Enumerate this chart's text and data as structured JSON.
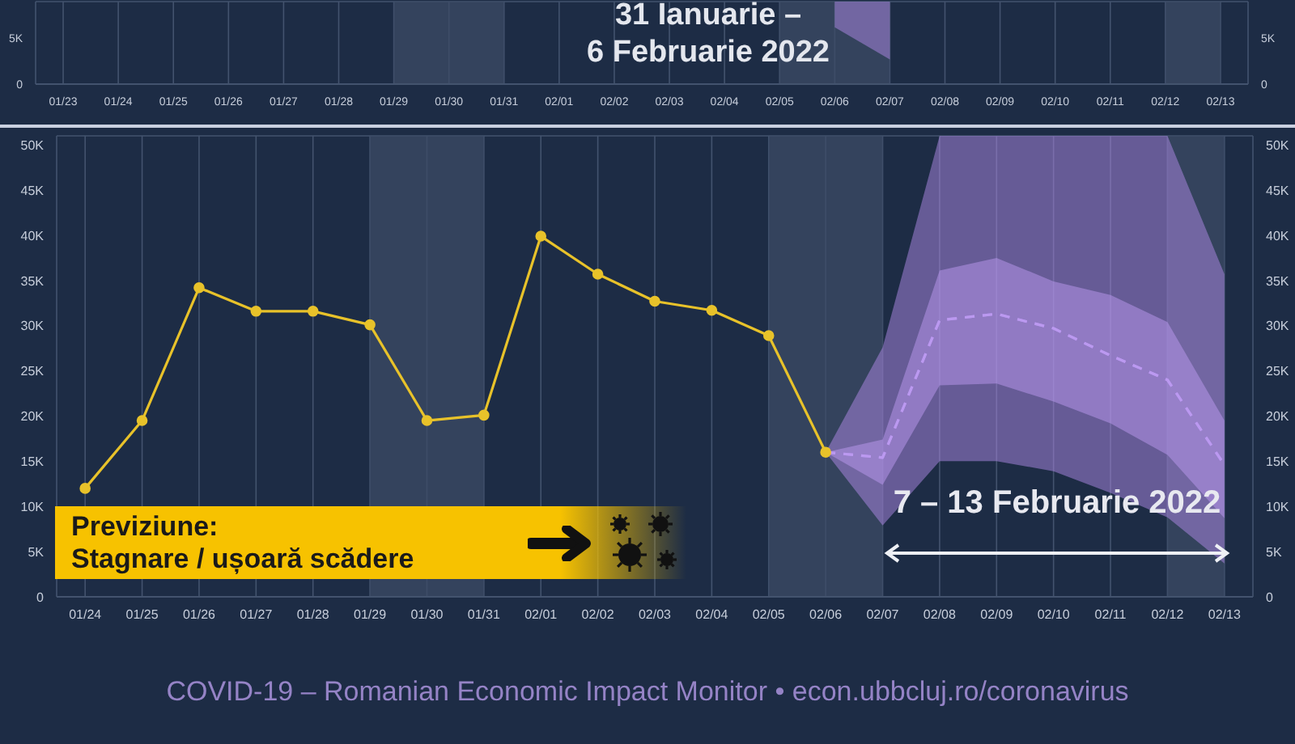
{
  "chart_data": [
    {
      "type": "line",
      "title": "31 Ianuarie –\n6 Februarie 2022",
      "categories": [
        "01/23",
        "01/24",
        "01/25",
        "01/26",
        "01/27",
        "01/28",
        "01/29",
        "01/30",
        "01/31",
        "02/01",
        "02/02",
        "02/03",
        "02/04",
        "02/05",
        "02/06",
        "02/07",
        "02/08",
        "02/09",
        "02/10",
        "02/11",
        "02/12",
        "02/13"
      ],
      "series": [
        {
          "color": "#b08ae8",
          "values": [
            null,
            null,
            null,
            null,
            null,
            null,
            null,
            null,
            null,
            null,
            null,
            null,
            null,
            null,
            null,
            null,
            null,
            null,
            null,
            null,
            null,
            null
          ],
          "lower": [
            null,
            null,
            null,
            null,
            null,
            null,
            null,
            null,
            null,
            null,
            null,
            null,
            null,
            null,
            6200,
            2700,
            null,
            null,
            null,
            null,
            null,
            null
          ],
          "upper": [
            null,
            null,
            null,
            null,
            null,
            null,
            null,
            null,
            null,
            null,
            null,
            null,
            null,
            null,
            9000,
            9000,
            null,
            null,
            null,
            null,
            null,
            null
          ]
        }
      ],
      "ylim": [
        0,
        9000
      ],
      "yticks": [
        0,
        {
          "value": 5000,
          "label": "5K"
        }
      ],
      "y2lim": [
        0,
        9000
      ],
      "y2ticks": [
        0,
        {
          "value": 5000,
          "label": "5K"
        }
      ],
      "grid": true,
      "bands": [
        {
          "axis": "x",
          "from": "01/29",
          "to": "01/31",
          "color": "#3c4b66"
        },
        {
          "axis": "x",
          "from": "02/05",
          "to": "02/07",
          "color": "#3c4b66"
        },
        {
          "axis": "x",
          "from": "02/12",
          "to": "02/13",
          "color": "#3c4b66"
        }
      ]
    },
    {
      "type": "line",
      "categories": [
        "01/24",
        "01/25",
        "01/26",
        "01/27",
        "01/28",
        "01/29",
        "01/30",
        "01/31",
        "02/01",
        "02/02",
        "02/03",
        "02/04",
        "02/05",
        "02/06",
        "02/07",
        "02/08",
        "02/09",
        "02/10",
        "02/11",
        "02/12",
        "02/13"
      ],
      "series": [
        {
          "color": "#b08ae8",
          "line_style": "dashed",
          "marker": "none",
          "values": [
            null,
            null,
            null,
            null,
            null,
            null,
            null,
            null,
            null,
            null,
            null,
            null,
            null,
            16000,
            15400,
            30600,
            31300,
            29700,
            26700,
            24000,
            14600
          ],
          "lower": [
            null,
            null,
            null,
            null,
            null,
            null,
            null,
            null,
            null,
            null,
            null,
            null,
            null,
            16000,
            7900,
            15000,
            15000,
            13900,
            11500,
            8800,
            3700
          ],
          "upper": [
            null,
            null,
            null,
            null,
            null,
            null,
            null,
            null,
            null,
            null,
            null,
            null,
            null,
            16000,
            27600,
            51000,
            51000,
            51000,
            51000,
            51000,
            35700
          ]
        },
        {
          "color": "#bb99f0",
          "line_style": "dashed",
          "marker": "none",
          "values": [
            null,
            null,
            null,
            null,
            null,
            null,
            null,
            null,
            null,
            null,
            null,
            null,
            null,
            16000,
            15400,
            30600,
            31300,
            29700,
            26700,
            24000,
            14600
          ],
          "lower": [
            null,
            null,
            null,
            null,
            null,
            null,
            null,
            null,
            null,
            null,
            null,
            null,
            null,
            16000,
            12400,
            23400,
            23600,
            21600,
            19200,
            15700,
            8700
          ],
          "upper": [
            null,
            null,
            null,
            null,
            null,
            null,
            null,
            null,
            null,
            null,
            null,
            null,
            null,
            16000,
            17400,
            36100,
            37500,
            34900,
            33400,
            30400,
            19500
          ]
        },
        {
          "color": "#e8c22a",
          "values": [
            12000,
            19500,
            34200,
            31600,
            31600,
            30100,
            19500,
            20100,
            39900,
            35700,
            32700,
            31700,
            28900,
            16000,
            null,
            null,
            null,
            null,
            null,
            null,
            null
          ]
        }
      ],
      "ylim": [
        0,
        51000
      ],
      "yticks": [
        0,
        {
          "value": 5000,
          "label": "5K"
        },
        {
          "value": 10000,
          "label": "10K"
        },
        {
          "value": 15000,
          "label": "15K"
        },
        {
          "value": 20000,
          "label": "20K"
        },
        {
          "value": 25000,
          "label": "25K"
        },
        {
          "value": 30000,
          "label": "30K"
        },
        {
          "value": 35000,
          "label": "35K"
        },
        {
          "value": 40000,
          "label": "40K"
        },
        {
          "value": 45000,
          "label": "45K"
        },
        {
          "value": 50000,
          "label": "50K"
        }
      ],
      "y2lim": [
        0,
        51000
      ],
      "y2ticks": [
        0,
        {
          "value": 5000,
          "label": "5K"
        },
        {
          "value": 10000,
          "label": "10K"
        },
        {
          "value": 15000,
          "label": "15K"
        },
        {
          "value": 20000,
          "label": "20K"
        },
        {
          "value": 25000,
          "label": "25K"
        },
        {
          "value": 30000,
          "label": "30K"
        },
        {
          "value": 35000,
          "label": "35K"
        },
        {
          "value": 40000,
          "label": "40K"
        },
        {
          "value": 45000,
          "label": "45K"
        },
        {
          "value": 50000,
          "label": "50K"
        }
      ],
      "grid": true,
      "marker": "circle",
      "line_style": "solid",
      "bands": [
        {
          "axis": "x",
          "from": "01/29",
          "to": "01/31",
          "color": "#3c4b66"
        },
        {
          "axis": "x",
          "from": "02/05",
          "to": "02/07",
          "color": "#3c4b66"
        },
        {
          "axis": "x",
          "from": "02/12",
          "to": "02/13",
          "color": "#3c4b66"
        }
      ],
      "annotations": [
        "Previziune:\nStagnare / ușoară scădere",
        "7 – 13 Februarie 2022",
        "COVID-19 – Romanian Economic Impact Monitor • econ.ubbcluj.ro/coronavirus"
      ]
    }
  ]
}
